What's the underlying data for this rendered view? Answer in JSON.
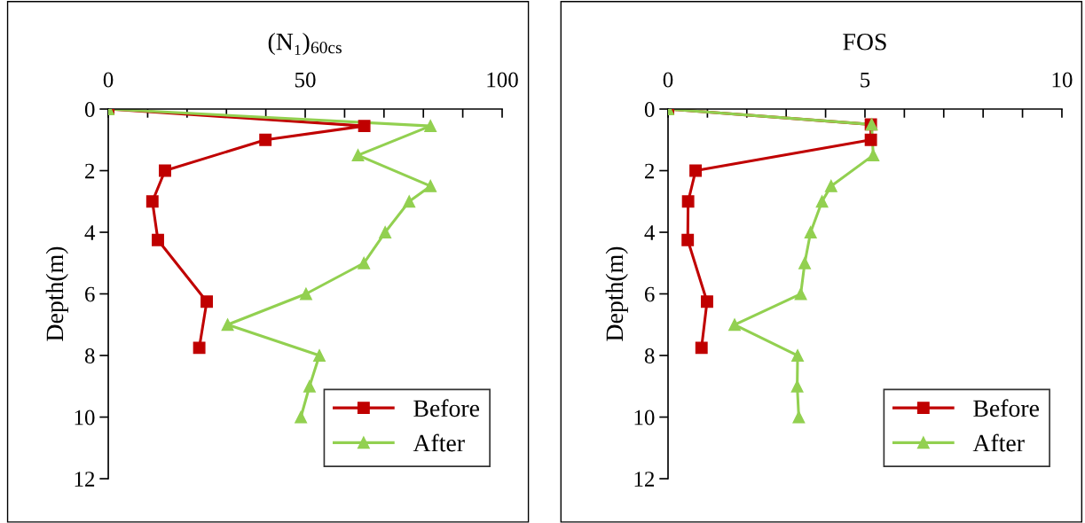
{
  "chart_data": [
    {
      "type": "line",
      "title": "(N₁)$_{60cs}$",
      "ylabel": "Depth(m)",
      "legend": "bottom right",
      "grid": false,
      "line_style": "solid",
      "xlim": [
        0,
        100
      ],
      "xticks": [
        0,
        {
          "value": 10,
          "label": null
        },
        {
          "value": 20,
          "label": null
        },
        {
          "value": 30,
          "label": null
        },
        {
          "value": 40,
          "label": null
        },
        50,
        {
          "value": 60,
          "label": null
        },
        {
          "value": 70,
          "label": null
        },
        {
          "value": 80,
          "label": null
        },
        {
          "value": 90,
          "label": null
        },
        100
      ],
      "ylim": [
        12,
        0
      ],
      "yticks": [
        0,
        2,
        4,
        6,
        8,
        10,
        12
      ],
      "series": [
        {
          "name": "Before",
          "color": "#c00000",
          "marker": "square",
          "x": [
            0,
            65.0,
            39.9,
            14.4,
            11.2,
            12.6,
            25.0,
            23.1
          ],
          "values": [
            0,
            0.55,
            1.0,
            2.0,
            3.0,
            4.25,
            6.25,
            7.75
          ]
        },
        {
          "name": "After",
          "color": "#92d050",
          "marker": "triangle",
          "x": [
            0,
            81.8,
            63.4,
            81.8,
            76.4,
            70.3,
            64.9,
            50.2,
            30.3,
            53.6,
            51.1,
            48.9
          ],
          "values": [
            0,
            0.55,
            1.5,
            2.5,
            3.0,
            4.0,
            5.0,
            6.0,
            7.0,
            8.0,
            9.0,
            10.0
          ]
        }
      ]
    },
    {
      "type": "line",
      "title": "FOS",
      "ylabel": "Depth(m)",
      "legend": "bottom right",
      "grid": false,
      "line_style": "solid",
      "xlim": [
        0,
        10
      ],
      "xticks": [
        0,
        {
          "value": 1,
          "label": null
        },
        {
          "value": 2,
          "label": null
        },
        {
          "value": 3,
          "label": null
        },
        {
          "value": 4,
          "label": null
        },
        5,
        {
          "value": 6,
          "label": null
        },
        {
          "value": 7,
          "label": null
        },
        {
          "value": 8,
          "label": null
        },
        {
          "value": 9,
          "label": null
        },
        10
      ],
      "ylim": [
        12,
        0
      ],
      "yticks": [
        0,
        2,
        4,
        6,
        8,
        10,
        12
      ],
      "series": [
        {
          "name": "Before",
          "color": "#c00000",
          "marker": "square",
          "x": [
            0,
            5.15,
            5.15,
            0.7,
            0.51,
            0.5,
            0.99,
            0.85
          ],
          "values": [
            0,
            0.5,
            1.0,
            2.0,
            3.0,
            4.25,
            6.25,
            7.75
          ]
        },
        {
          "name": "After",
          "color": "#92d050",
          "marker": "triangle",
          "x": [
            0,
            5.17,
            5.21,
            4.14,
            3.91,
            3.62,
            3.47,
            3.37,
            1.69,
            3.29,
            3.28,
            3.32
          ],
          "values": [
            0,
            0.5,
            1.5,
            2.5,
            3.0,
            4.0,
            5.0,
            6.0,
            7.0,
            8.0,
            9.0,
            10.0
          ]
        }
      ]
    }
  ]
}
